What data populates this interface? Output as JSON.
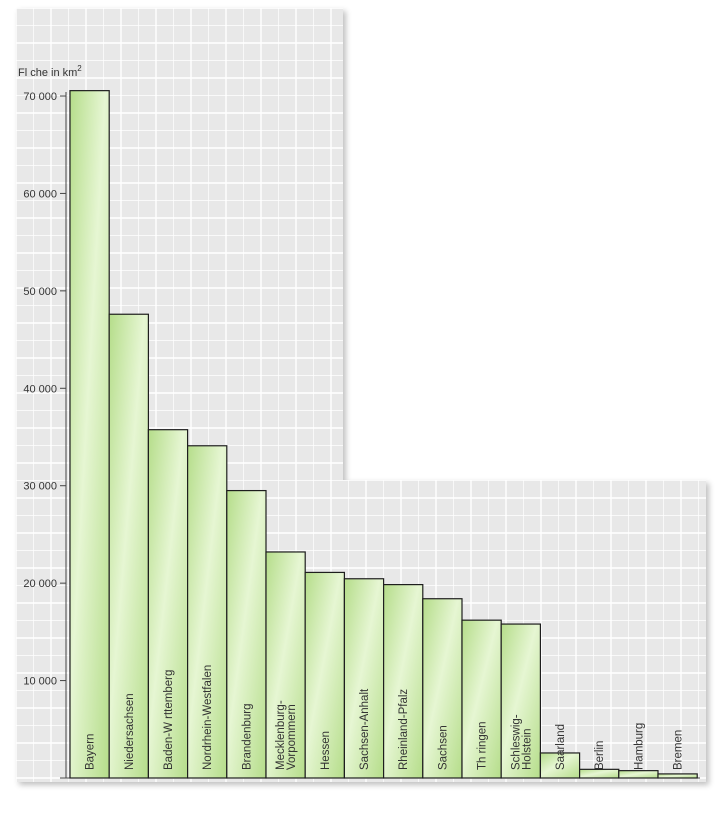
{
  "chart_data": {
    "type": "bar",
    "ylabel": "Fl che in km",
    "ylabel_superscript": "2",
    "ylim": [
      0,
      70000
    ],
    "y_ticks": [
      {
        "value": 10000,
        "label": "10 000"
      },
      {
        "value": 20000,
        "label": "20 000"
      },
      {
        "value": 30000,
        "label": "30 000"
      },
      {
        "value": 40000,
        "label": "40 000"
      },
      {
        "value": 50000,
        "label": "50 000"
      },
      {
        "value": 60000,
        "label": "60 000"
      },
      {
        "value": 70000,
        "label": "70 000"
      }
    ],
    "categories": [
      [
        "Bayern"
      ],
      [
        "Niedersachsen"
      ],
      [
        "Baden-W rttemberg"
      ],
      [
        "Nordrhein-Westfalen"
      ],
      [
        "Brandenburg"
      ],
      [
        "Mecklenburg-",
        "Vorpommern"
      ],
      [
        "Hessen"
      ],
      [
        "Sachsen-Anhalt"
      ],
      [
        "Rheinland-Pfalz"
      ],
      [
        "Sachsen"
      ],
      [
        "Th ringen"
      ],
      [
        "Schleswig-",
        "Holstein"
      ],
      [
        "Saarland"
      ],
      [
        "Berlin"
      ],
      [
        "Hamburg"
      ],
      [
        "Bremen"
      ]
    ],
    "values": [
      70550,
      47600,
      35750,
      34100,
      29500,
      23200,
      21100,
      20450,
      19850,
      18400,
      16200,
      15800,
      2570,
      890,
      755,
      420
    ],
    "grid": true,
    "bar_color": "#b5dd8a",
    "bar_highlight_color": "#e6f6d3",
    "bar_outline_color": "#1e1e1e",
    "grid_background_color": "#e8e8e8",
    "grid_line_color": "#ffffff"
  }
}
